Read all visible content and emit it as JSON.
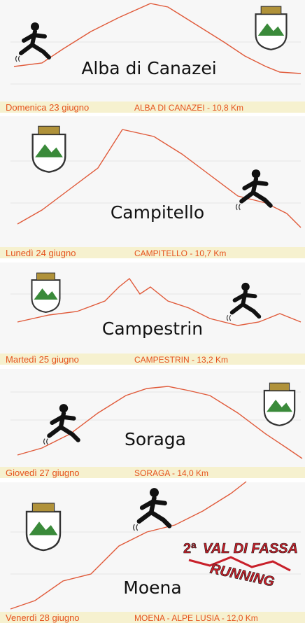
{
  "stages": [
    {
      "name": "Alba di Canazei",
      "day": "Domenica 23 giugno",
      "caption": "ALBA DI CANAZEI - 10,8 Km"
    },
    {
      "name": "Campitello",
      "day": "Lunedì 24 giugno",
      "caption": "CAMPITELLO - 10,7 Km"
    },
    {
      "name": "Campestrin",
      "day": "Martedì 25 giugno",
      "caption": "CAMPESTRIN - 13,2 Km"
    },
    {
      "name": "Soraga",
      "day": "Giovedì 27 giugno",
      "caption": "SORAGA - 14,0 Km"
    },
    {
      "name": "Moena",
      "day": "Venerdì 28 giugno",
      "caption": "MOENA - ALPE LUSIA - 12,0 Km"
    }
  ],
  "logo": {
    "ordinal": "2ª",
    "title": "VAL DI FASSA",
    "subtitle": "RUNNING"
  }
}
